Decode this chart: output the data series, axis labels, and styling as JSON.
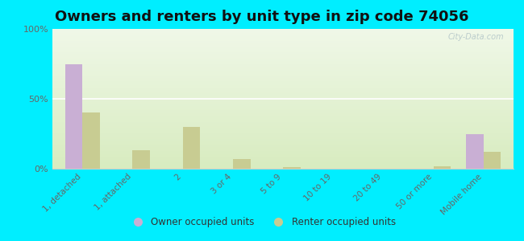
{
  "title": "Owners and renters by unit type in zip code 74056",
  "categories": [
    "1, detached",
    "1, attached",
    "2",
    "3 or 4",
    "5 to 9",
    "10 to 19",
    "20 to 49",
    "50 or more",
    "Mobile home"
  ],
  "owner_values": [
    75,
    0,
    0,
    0,
    0,
    0,
    0,
    0,
    25
  ],
  "renter_values": [
    40,
    13,
    30,
    7,
    1,
    0,
    0,
    2,
    12
  ],
  "owner_color": "#c9afd4",
  "renter_color": "#c8cc92",
  "outer_bg": "#00eeff",
  "plot_bg_color": "#e8f0d8",
  "ylim": [
    0,
    100
  ],
  "yticks": [
    0,
    50,
    100
  ],
  "ytick_labels": [
    "0%",
    "50%",
    "100%"
  ],
  "bar_width": 0.35,
  "legend_owner": "Owner occupied units",
  "legend_renter": "Renter occupied units",
  "title_fontsize": 13,
  "watermark": "City-Data.com"
}
